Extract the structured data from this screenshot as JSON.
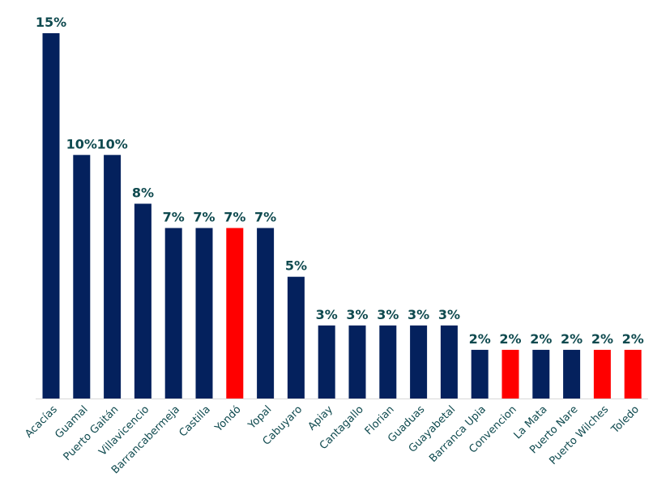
{
  "chart_data": {
    "type": "bar",
    "title": "",
    "xlabel": "",
    "ylabel": "",
    "ylim": [
      0,
      15
    ],
    "grid": false,
    "legend": "none",
    "categories": [
      "Acacías",
      "Guamal",
      "Puerto Gaitán",
      "Villavicencio",
      "Barrancabermeja",
      "Castilla",
      "Yondó",
      "Yopal",
      "Cabuyaro",
      "Apiay",
      "Cantagallo",
      "Florian",
      "Guaduas",
      "Guayabetal",
      "Barranca Upia",
      "Convencion",
      "La Mata",
      "Puerto Nare",
      "Puerto Wilches",
      "Toledo"
    ],
    "values": [
      15,
      10,
      10,
      8,
      7,
      7,
      7,
      7,
      5,
      3,
      3,
      3,
      3,
      3,
      2,
      2,
      2,
      2,
      2,
      2
    ],
    "value_labels": [
      "15%",
      "10%",
      "10%",
      "8%",
      "7%",
      "7%",
      "7%",
      "7%",
      "5%",
      "3%",
      "3%",
      "3%",
      "3%",
      "3%",
      "2%",
      "2%",
      "2%",
      "2%",
      "2%",
      "2%"
    ],
    "highlighted": [
      false,
      false,
      false,
      false,
      false,
      false,
      true,
      false,
      false,
      false,
      false,
      false,
      false,
      false,
      false,
      true,
      false,
      false,
      true,
      true
    ],
    "colors": {
      "default": "#04215d",
      "highlight": "#ff0000"
    }
  }
}
